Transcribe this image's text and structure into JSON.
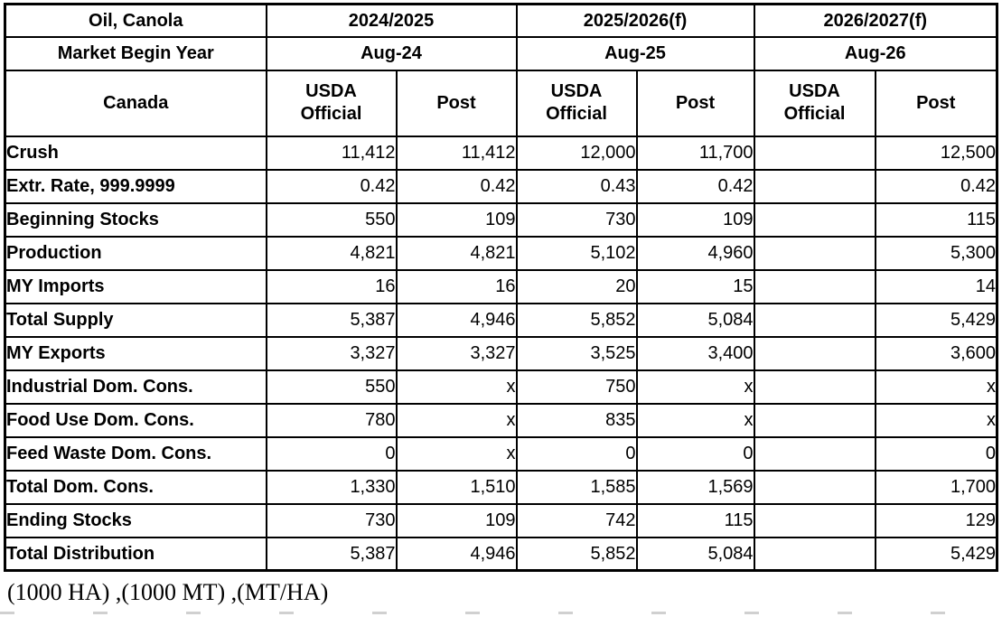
{
  "header": {
    "commodity": "Oil, Canola",
    "market_begin_year_label": "Market Begin Year",
    "country": "Canada",
    "year_groups": [
      {
        "year": "2024/2025",
        "begin": "Aug-24",
        "sub_columns": [
          "USDA Official",
          "Post"
        ]
      },
      {
        "year": "2025/2026(f)",
        "begin": "Aug-25",
        "sub_columns": [
          "USDA Official",
          "Post"
        ]
      },
      {
        "year": "2026/2027(f)",
        "begin": "Aug-26",
        "sub_columns": [
          "USDA Official",
          "Post"
        ]
      }
    ]
  },
  "rows": [
    {
      "label": "Crush",
      "values": [
        "11,412",
        "11,412",
        "12,000",
        "11,700",
        "",
        "12,500"
      ]
    },
    {
      "label": "Extr. Rate, 999.9999",
      "values": [
        "0.42",
        "0.42",
        "0.43",
        "0.42",
        "",
        "0.42"
      ]
    },
    {
      "label": "Beginning Stocks",
      "values": [
        "550",
        "109",
        "730",
        "109",
        "",
        "115"
      ]
    },
    {
      "label": "Production",
      "values": [
        "4,821",
        "4,821",
        "5,102",
        "4,960",
        "",
        "5,300"
      ]
    },
    {
      "label": "MY Imports",
      "values": [
        "16",
        "16",
        "20",
        "15",
        "",
        "14"
      ]
    },
    {
      "label": "Total Supply",
      "values": [
        "5,387",
        "4,946",
        "5,852",
        "5,084",
        "",
        "5,429"
      ]
    },
    {
      "label": "MY Exports",
      "values": [
        "3,327",
        "3,327",
        "3,525",
        "3,400",
        "",
        "3,600"
      ]
    },
    {
      "label": "Industrial Dom. Cons.",
      "values": [
        "550",
        "x",
        "750",
        "x",
        "",
        "x"
      ]
    },
    {
      "label": "Food Use Dom. Cons.",
      "values": [
        "780",
        "x",
        "835",
        "x",
        "",
        "x"
      ]
    },
    {
      "label": "Feed Waste Dom. Cons.",
      "values": [
        "0",
        "x",
        "0",
        "0",
        "",
        "0"
      ]
    },
    {
      "label": "Total Dom. Cons.",
      "values": [
        "1,330",
        "1,510",
        "1,585",
        "1,569",
        "",
        "1,700"
      ]
    },
    {
      "label": "Ending Stocks",
      "values": [
        "730",
        "109",
        "742",
        "115",
        "",
        "129"
      ]
    },
    {
      "label": "Total Distribution",
      "values": [
        "5,387",
        "4,946",
        "5,852",
        "5,084",
        "",
        "5,429"
      ]
    }
  ],
  "footer": {
    "units_note": "(1000 HA) ,(1000 MT) ,(MT/HA)"
  },
  "colors": {
    "text": "#000000",
    "border": "#000000",
    "background": "#ffffff"
  }
}
